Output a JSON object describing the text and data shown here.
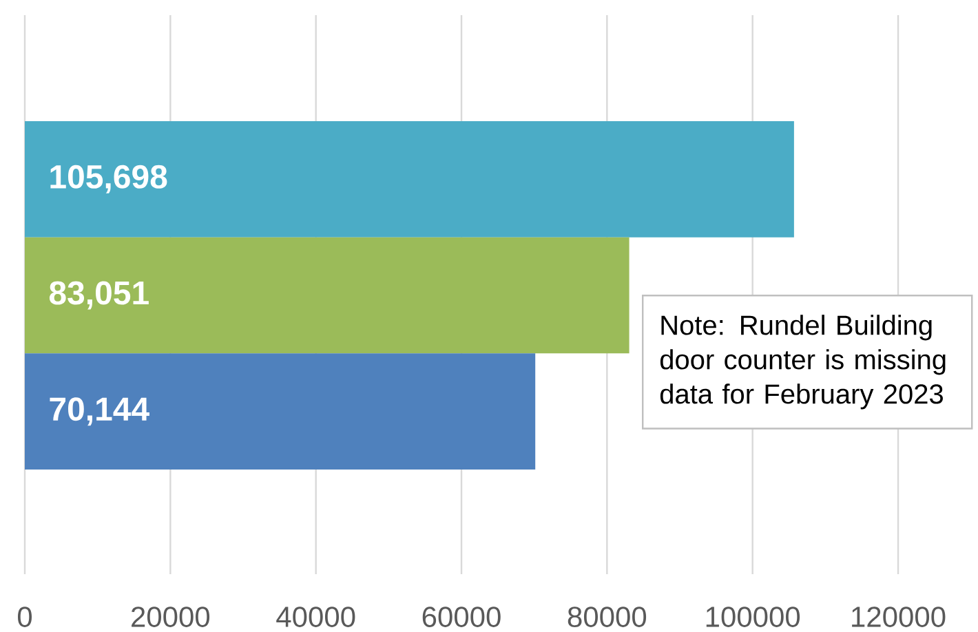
{
  "chart_data": {
    "type": "bar",
    "orientation": "horizontal",
    "categories": [
      null,
      null,
      null
    ],
    "values": [
      105698,
      83051,
      70144
    ],
    "colors": [
      "#4bacc6",
      "#9bbb59",
      "#4f81bd"
    ],
    "value_labels": [
      "105,698",
      "83,051",
      "70,144"
    ],
    "xlim": [
      0,
      120000
    ],
    "xticks": [
      0,
      20000,
      40000,
      60000,
      80000,
      100000,
      120000
    ],
    "grid": "x",
    "annotations": [
      "Note: Rundel Building door counter is missing data for February 2023"
    ]
  }
}
